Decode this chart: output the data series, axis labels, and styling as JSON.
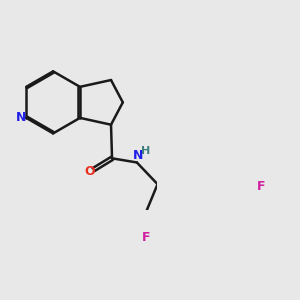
{
  "background_color": "#e8e8e8",
  "bond_color": "#1a1a1a",
  "N_color": "#2020e8",
  "O_color": "#e83020",
  "F_color": "#d020a0",
  "NH_color": "#408080",
  "line_width": 1.8,
  "dbl_off": 0.034,
  "figsize": [
    3.0,
    3.0
  ],
  "dpi": 100,
  "xlim": [
    0.1,
    3.1
  ],
  "ylim": [
    1.3,
    4.5
  ]
}
